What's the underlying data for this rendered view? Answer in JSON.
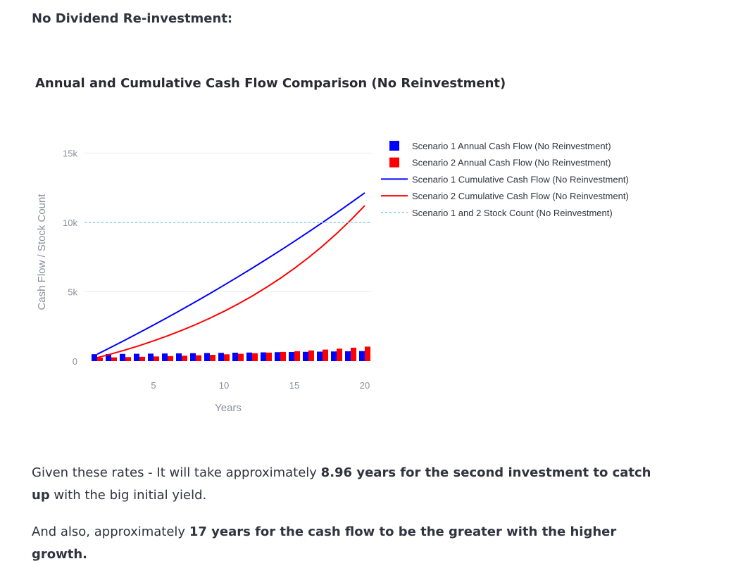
{
  "heading": "No Dividend Re-investment:",
  "paragraphs": {
    "p1_pre": "Given these rates - It will take approximately ",
    "p1_bold": "8.96 years for the second investment to catch up",
    "p1_post": " with the big initial yield.",
    "p2_pre": "And also, approximately ",
    "p2_bold": "17 years for the cash flow to be the greater with the higher growth."
  },
  "chart_data": {
    "type": "bar",
    "title": "Annual and Cumulative Cash Flow Comparison (No Reinvestment)",
    "xlabel": "Years",
    "ylabel": "Cash Flow / Stock Count",
    "xlim": [
      0.1,
      20.5
    ],
    "ylim": [
      0,
      16500
    ],
    "xticks": [
      5,
      10,
      15,
      20
    ],
    "xtick_labels": [
      "5",
      "10",
      "15",
      "20"
    ],
    "yticks": [
      0,
      5000,
      10000,
      15000
    ],
    "ytick_labels": [
      "0",
      "5k",
      "10k",
      "15k"
    ],
    "grid": "horizontal",
    "legend_position": "right",
    "x": [
      1,
      2,
      3,
      4,
      5,
      6,
      7,
      8,
      9,
      10,
      11,
      12,
      13,
      14,
      15,
      16,
      17,
      18,
      19,
      20
    ],
    "series": [
      {
        "name": "Scenario 1 Annual Cash Flow (No Reinvestment)",
        "type": "bar",
        "color": "#0000ff",
        "values": [
          500,
          510,
          520,
          530,
          541,
          552,
          563,
          574,
          585,
          597,
          609,
          621,
          634,
          646,
          659,
          672,
          686,
          699,
          713,
          728
        ]
      },
      {
        "name": "Scenario 2 Annual Cash Flow (No Reinvestment)",
        "type": "bar",
        "color": "#ff0000",
        "values": [
          250,
          269,
          290,
          313,
          338,
          364,
          393,
          423,
          456,
          492,
          531,
          572,
          617,
          665,
          717,
          774,
          834,
          900,
          970,
          1046
        ]
      },
      {
        "name": "Scenario 1 Cumulative Cash Flow (No Reinvestment)",
        "type": "line",
        "color": "#0000ff",
        "values": [
          500,
          1010,
          1530,
          2060,
          2601,
          3153,
          3716,
          4290,
          4875,
          5472,
          6081,
          6702,
          7336,
          7982,
          8641,
          9313,
          9999,
          10698,
          11411,
          12139
        ]
      },
      {
        "name": "Scenario 2 Cumulative Cash Flow (No Reinvestment)",
        "type": "line",
        "color": "#ff0000",
        "values": [
          250,
          519,
          809,
          1122,
          1460,
          1824,
          2217,
          2640,
          3096,
          3588,
          4119,
          4691,
          5308,
          5973,
          6690,
          7464,
          8298,
          9198,
          10168,
          11214
        ]
      },
      {
        "name": "Scenario 1 and 2 Stock Count (No Reinvestment)",
        "type": "line",
        "dash": "dot",
        "color": "#87ceeb",
        "values": [
          10000,
          10000,
          10000,
          10000,
          10000,
          10000,
          10000,
          10000,
          10000,
          10000,
          10000,
          10000,
          10000,
          10000,
          10000,
          10000,
          10000,
          10000,
          10000,
          10000
        ]
      }
    ]
  }
}
